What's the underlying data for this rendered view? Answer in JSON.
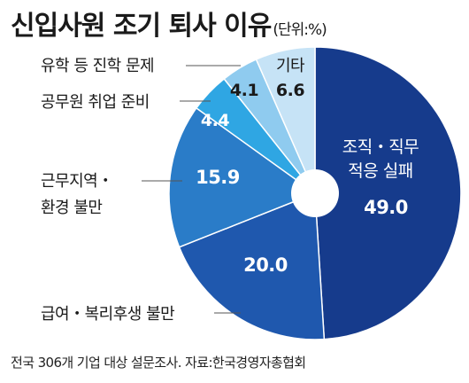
{
  "title": "신입사원 조기 퇴사 이유",
  "unit": "(단위:%)",
  "source": "전국 306개 기업 대상 설문조사. 자료:한국경영자총협회",
  "chart_data": {
    "type": "pie",
    "slices": [
      {
        "label": "조직・직무 적응 실패",
        "value": 49.0,
        "value_text": "49.0",
        "color": "#163b8c"
      },
      {
        "label": "급여・복리후생 불만",
        "value": 20.0,
        "value_text": "20.0",
        "color": "#1f58ae"
      },
      {
        "label": "근무지역・환경 불만",
        "value": 15.9,
        "value_text": "15.9",
        "color": "#2a7cc8"
      },
      {
        "label": "공무원 취업 준비",
        "value": 4.4,
        "value_text": "4.4",
        "color": "#2fa6e3"
      },
      {
        "label": "유학 등 진학 문제",
        "value": 4.1,
        "value_text": "4.1",
        "color": "#8fcbef"
      },
      {
        "label": "기타",
        "value": 6.6,
        "value_text": "6.6",
        "color": "#c6e3f6"
      }
    ]
  }
}
